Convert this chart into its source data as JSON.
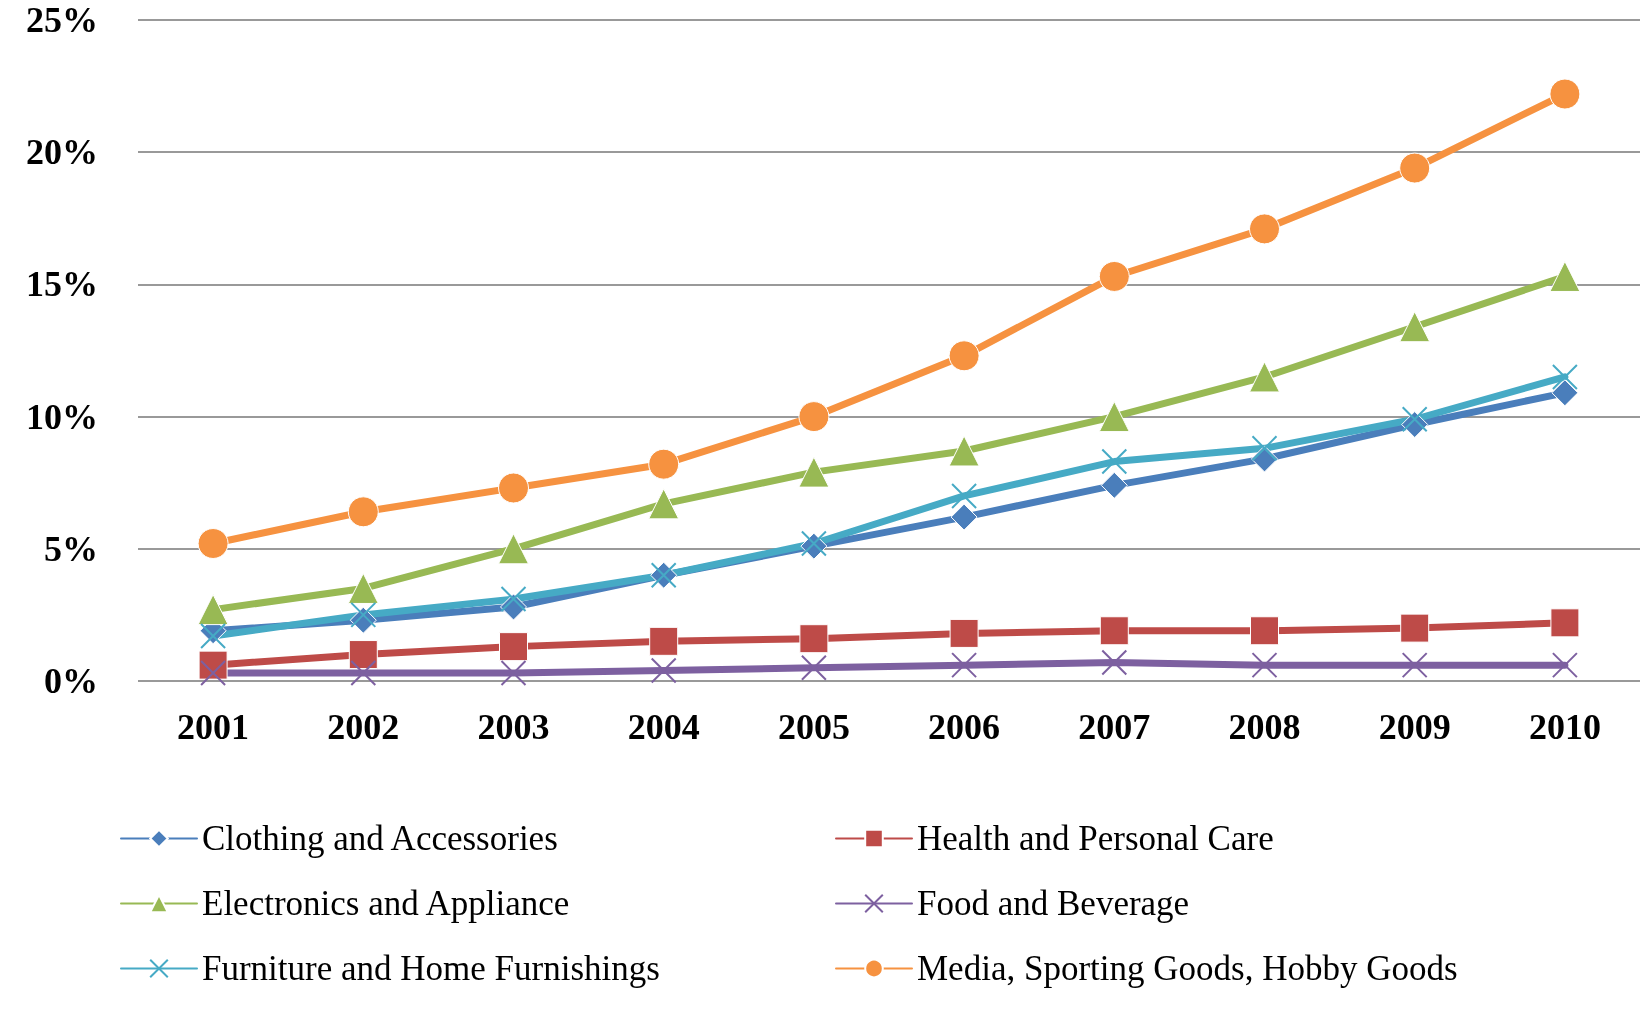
{
  "chart_data": {
    "type": "line",
    "categories": [
      "2001",
      "2002",
      "2003",
      "2004",
      "2005",
      "2006",
      "2007",
      "2008",
      "2009",
      "2010"
    ],
    "series": [
      {
        "name": "Clothing and Accessories",
        "color": "#4a7ebb",
        "marker": "diamond",
        "values": [
          1.9,
          2.3,
          2.8,
          4.0,
          5.1,
          6.2,
          7.4,
          8.4,
          9.7,
          10.9
        ]
      },
      {
        "name": "Health and Personal Care",
        "color": "#be4b48",
        "marker": "square",
        "values": [
          0.6,
          1.0,
          1.3,
          1.5,
          1.6,
          1.8,
          1.9,
          1.9,
          2.0,
          2.2
        ]
      },
      {
        "name": "Electronics and Appliance",
        "color": "#98b954",
        "marker": "triangle",
        "values": [
          2.7,
          3.5,
          5.0,
          6.7,
          7.9,
          8.7,
          10.0,
          11.5,
          13.4,
          15.3
        ]
      },
      {
        "name": "Food and Beverage",
        "color": "#7d60a0",
        "marker": "cross",
        "values": [
          0.3,
          0.3,
          0.3,
          0.4,
          0.5,
          0.6,
          0.7,
          0.6,
          0.6,
          0.6
        ]
      },
      {
        "name": "Furniture and Home Furnishings",
        "color": "#46aac5",
        "marker": "cross",
        "values": [
          1.7,
          2.5,
          3.1,
          4.0,
          5.2,
          7.0,
          8.3,
          8.8,
          9.9,
          11.5
        ]
      },
      {
        "name": "Media, Sporting Goods, Hobby Goods",
        "color": "#f69240",
        "marker": "circle",
        "values": [
          5.2,
          6.4,
          7.3,
          8.2,
          10.0,
          12.3,
          15.3,
          17.1,
          19.4,
          22.2
        ]
      }
    ],
    "ylim": [
      0,
      25
    ],
    "yticks": [
      {
        "value": 0,
        "label": "0%"
      },
      {
        "value": 5,
        "label": "5%"
      },
      {
        "value": 10,
        "label": "10%"
      },
      {
        "value": 15,
        "label": "15%"
      },
      {
        "value": 20,
        "label": "20%"
      },
      {
        "value": 25,
        "label": "25%"
      }
    ],
    "grid": "y",
    "legend": "bottom",
    "line_style": "solid"
  }
}
